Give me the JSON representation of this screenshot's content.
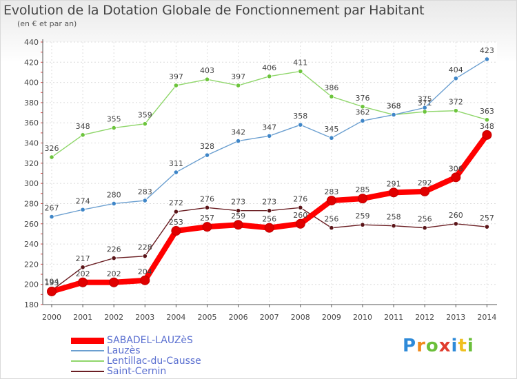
{
  "title": "Evolution de la Dotation Globale de Fonctionnement par Habitant",
  "subtitle": "(en € et par an)",
  "brand": {
    "letters": [
      "P",
      "r",
      "o",
      "x",
      "i",
      "t",
      "i"
    ],
    "colors": [
      "#2e8ad8",
      "#f08a1c",
      "#6bbf3a",
      "#e03c2e",
      "#2e8ad8",
      "#f0c020",
      "#6bbf3a"
    ]
  },
  "chart_data": {
    "type": "line",
    "title": "Evolution de la Dotation Globale de Fonctionnement par Habitant",
    "ylabel": "(en € et par an)",
    "xlabel": "",
    "ylim": [
      180,
      440
    ],
    "yticks": [
      180,
      200,
      220,
      240,
      260,
      280,
      300,
      320,
      340,
      360,
      380,
      400,
      420,
      440
    ],
    "grid": true,
    "legend_position": "bottom-left",
    "x": [
      "2000",
      "2001",
      "2002",
      "2003",
      "2004",
      "2005",
      "2006",
      "2007",
      "2008",
      "2009",
      "2010",
      "2011",
      "2012",
      "2013",
      "2014"
    ],
    "series": [
      {
        "name": "Saint-Cernin",
        "color": "#6b1f24",
        "marker": "#5a1418",
        "values": [
          194,
          217,
          226,
          228,
          272,
          276,
          273,
          273,
          276,
          256,
          259,
          258,
          256,
          260,
          257
        ],
        "emphasis": false
      },
      {
        "name": "Lentillac-du-Causse",
        "color": "#8fd66a",
        "marker": "#6cc43c",
        "values": [
          326,
          348,
          355,
          359,
          397,
          403,
          397,
          406,
          411,
          386,
          376,
          368,
          371,
          372,
          363
        ],
        "emphasis": false
      },
      {
        "name": "Lauzès",
        "color": "#6b9fd0",
        "marker": "#3f86c8",
        "values": [
          267,
          274,
          280,
          283,
          311,
          328,
          342,
          347,
          358,
          345,
          362,
          368,
          375,
          404,
          423
        ],
        "emphasis": false
      },
      {
        "name": "SABADEL-LAUZèS",
        "color": "#ff0000",
        "marker": "#e00000",
        "values": [
          193,
          202,
          202,
          204,
          253,
          257,
          259,
          256,
          260,
          283,
          285,
          291,
          292,
          306,
          348
        ],
        "emphasis": true
      }
    ],
    "legend_order": [
      "SABADEL-LAUZèS",
      "Lauzès",
      "Lentillac-du-Causse",
      "Saint-Cernin"
    ]
  }
}
